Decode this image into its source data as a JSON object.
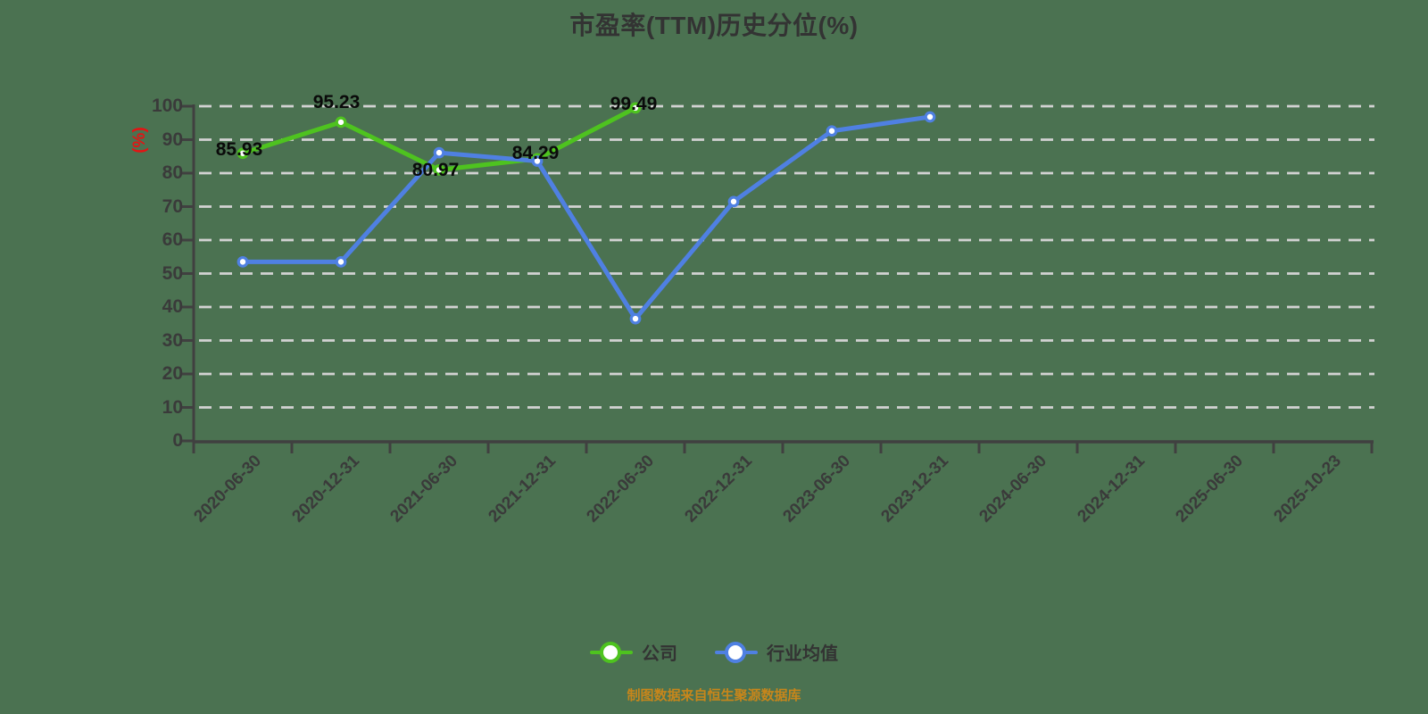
{
  "chart": {
    "title": "市盈率(TTM)历史分位(%)",
    "y_axis_title": "(%)"
  },
  "chart_data": {
    "type": "line",
    "categories": [
      "2020-06-30",
      "2020-12-31",
      "2021-06-30",
      "2021-12-31",
      "2022-06-30",
      "2022-12-31",
      "2023-06-30",
      "2023-12-31",
      "2024-06-30",
      "2024-12-31",
      "2025-06-30",
      "2025-10-23"
    ],
    "series": [
      {
        "name": "公司",
        "color": "#4ec31f",
        "values": [
          85.93,
          95.23,
          80.97,
          84.29,
          99.49,
          null,
          null,
          null,
          null,
          null,
          null,
          null
        ],
        "point_labels": [
          "85.93",
          "95.23",
          "80.97",
          "84.29",
          "99.49"
        ]
      },
      {
        "name": "行业均值",
        "color": "#4f80e2",
        "values": [
          53.5,
          53.5,
          86.1,
          83.6,
          36.5,
          71.5,
          92.6,
          96.8,
          null,
          null,
          null,
          null
        ],
        "point_labels": []
      }
    ],
    "ylim": [
      0,
      100
    ],
    "yticks": [
      0,
      10,
      20,
      30,
      40,
      50,
      60,
      70,
      80,
      90,
      100
    ],
    "xlabel": "",
    "ylabel": "(%)",
    "grid": "dashed horizontal",
    "legend_position": "bottom"
  },
  "footer": {
    "note": "制图数据来自恒生聚源数据库"
  },
  "colors": {
    "background": "#4b7251",
    "title_text": "#333333",
    "axis_text": "#3a3a3a",
    "axis_line": "#404040",
    "gridline": "#d2d2d2",
    "company_series": "#4ec31f",
    "industry_series": "#4f80e2",
    "y_axis_title": "#e31414",
    "footer_text": "#c7861b",
    "point_label": "#0a0a0a"
  }
}
